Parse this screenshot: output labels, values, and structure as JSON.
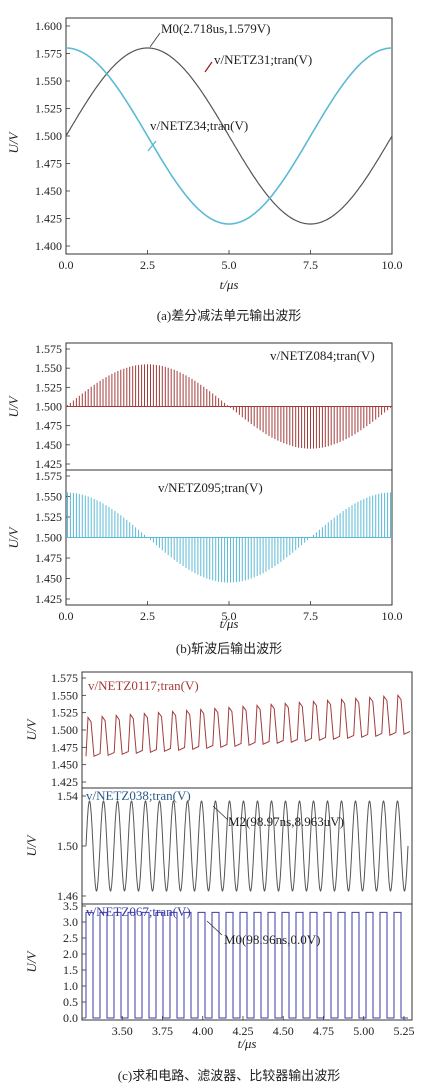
{
  "captions": {
    "a": "(a)差分减法单元输出波形",
    "b": "(b)斩波后输出波形",
    "c": "(c)求和电路、滤波器、比较器输出波形"
  },
  "chart_data": [
    {
      "id": "a",
      "type": "line",
      "xlabel": "t/μs",
      "ylabel": "U/V",
      "xlim": [
        0,
        10
      ],
      "ylim": [
        1.4,
        1.6
      ],
      "xticks": [
        "0.0",
        "2.5",
        "5.0",
        "7.5",
        "10.0"
      ],
      "yticks": [
        "1.400",
        "1.425",
        "1.450",
        "1.475",
        "1.500",
        "1.525",
        "1.550",
        "1.575",
        "1.600"
      ],
      "series": [
        {
          "name": "v/NETZ31;tran(V)",
          "color": "#555555",
          "shape": "sine",
          "offset": 1.5,
          "amplitude": 0.08,
          "period_us": 10,
          "phase_note": "sin",
          "x": [
            0,
            2.5,
            5,
            7.5,
            10
          ],
          "y": [
            1.5,
            1.58,
            1.5,
            1.42,
            1.5
          ]
        },
        {
          "name": "v/NETZ34;tran(V)",
          "color": "#5bbad5",
          "shape": "cosine",
          "offset": 1.5,
          "amplitude": 0.08,
          "period_us": 10,
          "x": [
            0,
            2.5,
            5,
            7.5,
            10
          ],
          "y": [
            1.58,
            1.5,
            1.42,
            1.5,
            1.58
          ]
        }
      ],
      "annotations": [
        {
          "text": "M0(2.718us,1.579V)",
          "x": 2.718,
          "y": 1.579
        }
      ]
    },
    {
      "id": "b1",
      "type": "area",
      "xlabel": "",
      "ylabel": "U/V",
      "xlim": [
        0,
        10
      ],
      "ylim": [
        1.425,
        1.575
      ],
      "yticks": [
        "1.425",
        "1.450",
        "1.475",
        "1.500",
        "1.525",
        "1.550",
        "1.575"
      ],
      "series": [
        {
          "name": "v/NETZ084;tran(V)",
          "color": "#a33b3b",
          "shape": "chopped sine",
          "offset": 1.5,
          "amplitude": 0.055
        }
      ]
    },
    {
      "id": "b2",
      "type": "area",
      "xlabel": "t/μs",
      "ylabel": "U/V",
      "xlim": [
        0,
        10
      ],
      "ylim": [
        1.425,
        1.575
      ],
      "xticks": [
        "0.0",
        "2.5",
        "5.0",
        "7.5",
        "10.0"
      ],
      "yticks": [
        "1.425",
        "1.450",
        "1.475",
        "1.500",
        "1.525",
        "1.550",
        "1.575"
      ],
      "series": [
        {
          "name": "v/NETZ095;tran(V)",
          "color": "#5bbad5",
          "shape": "chopped cosine",
          "offset": 1.5,
          "amplitude": 0.055
        }
      ]
    },
    {
      "id": "c1",
      "type": "line",
      "ylabel": "U/V",
      "xlim": [
        3.25,
        5.3
      ],
      "ylim": [
        1.425,
        1.575
      ],
      "yticks": [
        "1.425",
        "1.450",
        "1.475",
        "1.500",
        "1.525",
        "1.550",
        "1.575"
      ],
      "series": [
        {
          "name": "v/NETZ0117;tran(V)",
          "color": "#a33b3b",
          "shape": "square wave with rising offset",
          "start_center": 1.49,
          "end_center": 1.522,
          "half_swing": 0.028
        }
      ]
    },
    {
      "id": "c2",
      "type": "line",
      "ylabel": "U/V",
      "xlim": [
        3.25,
        5.3
      ],
      "ylim": [
        1.46,
        1.54
      ],
      "yticks": [
        "1.46",
        "1.50",
        "1.54"
      ],
      "series": [
        {
          "name": "v/NETZ038;tran(V)",
          "color": "#555555",
          "shape": "sine",
          "offset": 1.5,
          "amplitude": 0.036
        }
      ],
      "annotations": [
        {
          "text": "M2(98.97ns,8.963uV)"
        }
      ]
    },
    {
      "id": "c3",
      "type": "line",
      "xlabel": "t/μs",
      "ylabel": "U/V",
      "xlim": [
        3.25,
        5.3
      ],
      "ylim": [
        0.0,
        3.5
      ],
      "xticks": [
        "3.50",
        "3.75",
        "4.00",
        "4.25",
        "4.50",
        "4.75",
        "5.00",
        "5.25"
      ],
      "yticks": [
        "0.0",
        "0.5",
        "1.0",
        "1.5",
        "2.0",
        "2.5",
        "3.0",
        "3.5"
      ],
      "series": [
        {
          "name": "v/NETZ067;tran(V)",
          "color": "#3b3ba8",
          "shape": "square wave",
          "low": 0.0,
          "high": 3.3
        }
      ],
      "annotations": [
        {
          "text": "M0(98.96ns,0.0V)"
        }
      ]
    }
  ]
}
